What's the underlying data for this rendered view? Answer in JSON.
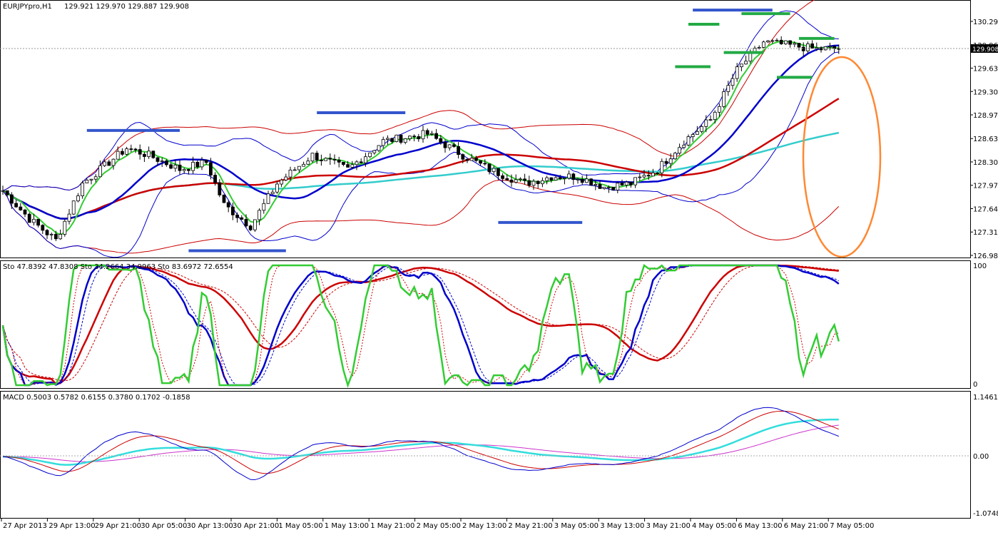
{
  "window": {
    "symbol_header": "EURJPYpro,H1",
    "ohlc": "129.921 129.970 129.887 129.908",
    "current_price_label": "129.908"
  },
  "price_pane": {
    "y_ticks": [
      "130.290",
      "129.960",
      "129.630",
      "129.300",
      "128.970",
      "128.635",
      "128.305",
      "127.975",
      "127.645",
      "127.315",
      "126.985"
    ],
    "colors": {
      "candle_outline": "#000000",
      "bollinger_outer": "#cc0000",
      "bollinger_inner": "#0000cc",
      "ma_fast": "#33cc33",
      "ma_mid": "#0000cc",
      "ma_slow": "#cc0000",
      "ma_long": "#33cccc",
      "support_resistance": "#3355cc",
      "green_levels": "#22aa44",
      "projection_ellipse": "#ff8833"
    }
  },
  "stoch_pane": {
    "label": "Sto 47.8392 47.8308   Sto 34.2664 34.9963   Sto 83.6972 72.6554",
    "y_top": "100",
    "y_bottom": "0"
  },
  "macd_pane": {
    "label": "MACD 0.5003 0.5782 0.6155 0.3780 0.1702 -0.1858",
    "y_ticks": [
      "1.1461",
      "0.00",
      "-1.0748"
    ]
  },
  "x_ticks": [
    "27 Apr 2013",
    "29 Apr 13:00",
    "29 Apr 21:00",
    "30 Apr 05:00",
    "30 Apr 13:00",
    "30 Apr 21:00",
    "1 May 05:00",
    "1 May 13:00",
    "1 May 21:00",
    "2 May 05:00",
    "2 May 13:00",
    "2 May 21:00",
    "3 May 05:00",
    "3 May 13:00",
    "3 May 21:00",
    "4 May 05:00",
    "6 May 13:00",
    "6 May 21:00",
    "7 May 05:00"
  ],
  "chart_data": {
    "type": "candlestick",
    "series": [
      {
        "name": "Sto",
        "values": [
          47.8392,
          47.8308
        ]
      },
      {
        "name": "Sto",
        "values": [
          34.2664,
          34.9963
        ]
      },
      {
        "name": "Sto",
        "values": [
          83.6972,
          72.6554
        ]
      },
      {
        "name": "MACD",
        "values": [
          0.5003,
          0.5782,
          0.6155,
          0.378,
          0.1702,
          -0.1858
        ]
      }
    ],
    "last_close": 129.908,
    "price_range": [
      126.985,
      130.29
    ]
  }
}
